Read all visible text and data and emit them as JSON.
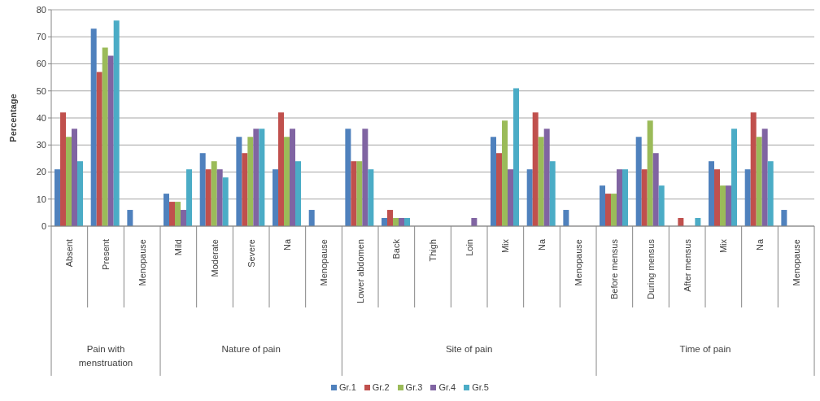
{
  "chart_data": {
    "type": "bar",
    "ylabel": "Percentage",
    "categories": [
      "Absent",
      "Present",
      "Menopause",
      "Mild",
      "Moderate",
      "Severe",
      "Na",
      "Menopause",
      "Lower abdomen",
      "Back",
      "Thigh",
      "Loin",
      "Mix",
      "Na",
      "Menopause",
      "Before mensus",
      "During mensus",
      "After mensus",
      "Mix",
      "Na",
      "Menopause"
    ],
    "series": [
      {
        "name": "Gr.1",
        "color": "#4f81bd",
        "values": [
          21,
          73,
          6,
          12,
          27,
          33,
          21,
          6,
          36,
          3,
          0,
          0,
          33,
          21,
          6,
          15,
          33,
          0,
          24,
          21,
          6
        ]
      },
      {
        "name": "Gr.2",
        "color": "#c0504d",
        "values": [
          42,
          57,
          0,
          9,
          21,
          27,
          42,
          0,
          24,
          6,
          0,
          0,
          27,
          42,
          0,
          12,
          21,
          3,
          21,
          42,
          0
        ]
      },
      {
        "name": "Gr.3",
        "color": "#9bbb59",
        "values": [
          33,
          66,
          0,
          9,
          24,
          33,
          33,
          0,
          24,
          3,
          0,
          0,
          39,
          33,
          0,
          12,
          39,
          0,
          15,
          33,
          0
        ]
      },
      {
        "name": "Gr.4",
        "color": "#8064a2",
        "values": [
          36,
          63,
          0,
          6,
          21,
          36,
          36,
          0,
          36,
          3,
          0,
          3,
          21,
          36,
          0,
          21,
          27,
          0,
          15,
          36,
          0
        ]
      },
      {
        "name": "Gr.5",
        "color": "#4bacc6",
        "values": [
          24,
          76,
          0,
          21,
          18,
          36,
          24,
          0,
          21,
          3,
          0,
          0,
          51,
          24,
          0,
          21,
          15,
          3,
          36,
          24,
          0
        ]
      }
    ],
    "ylim": [
      0,
      80
    ],
    "yticks": [
      0,
      10,
      20,
      30,
      40,
      50,
      60,
      70,
      80
    ],
    "grid": "y",
    "legend": "bottom",
    "annotations": [
      "Pain with menstruation",
      "Nature of pain",
      "Site of pain",
      "Time of pain"
    ]
  }
}
